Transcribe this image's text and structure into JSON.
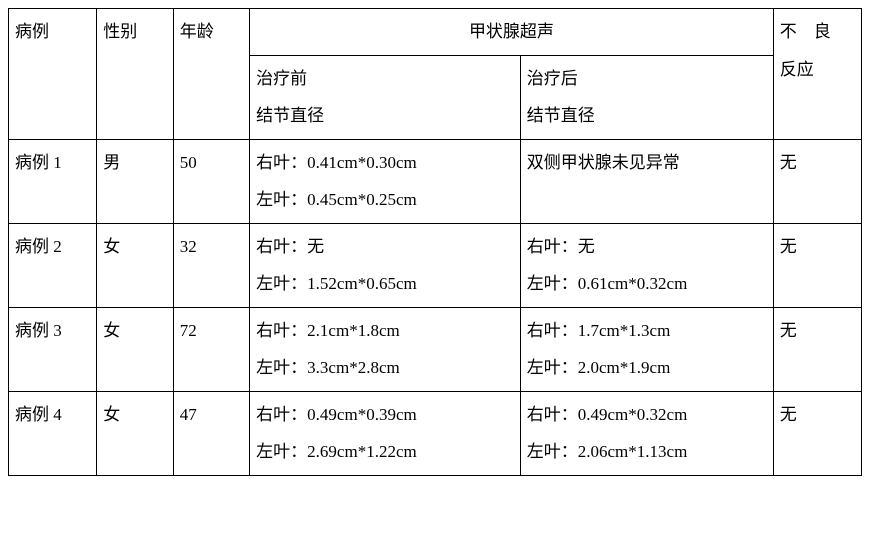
{
  "table": {
    "headers": {
      "case": "病例",
      "sex": "性别",
      "age": "年龄",
      "ultrasound": "甲状腺超声",
      "before_l1": "治疗前",
      "before_l2": "结节直径",
      "after_l1": "治疗后",
      "after_l2": "结节直径",
      "adverse_l1": "不　良",
      "adverse_l2": "反应"
    },
    "rows": [
      {
        "case": "病例 1",
        "sex": "男",
        "age": "50",
        "before_r": "右叶：0.41cm*0.30cm",
        "before_l": "左叶：0.45cm*0.25cm",
        "after_r": "双侧甲状腺未见异常",
        "after_l": "",
        "adverse": "无"
      },
      {
        "case": "病例 2",
        "sex": "女",
        "age": "32",
        "before_r": "右叶：无",
        "before_l": "左叶：1.52cm*0.65cm",
        "after_r": "右叶：无",
        "after_l": "左叶：0.61cm*0.32cm",
        "adverse": "无"
      },
      {
        "case": "病例 3",
        "sex": "女",
        "age": "72",
        "before_r": "右叶：2.1cm*1.8cm",
        "before_l": "左叶：3.3cm*2.8cm",
        "after_r": "右叶：1.7cm*1.3cm",
        "after_l": "左叶：2.0cm*1.9cm",
        "adverse": "无"
      },
      {
        "case": "病例 4",
        "sex": "女",
        "age": "47",
        "before_r": "右叶：0.49cm*0.39cm",
        "before_l": "左叶：2.69cm*1.22cm",
        "after_r": "右叶：0.49cm*0.32cm",
        "after_l": "左叶：2.06cm*1.13cm",
        "adverse": "无"
      }
    ]
  }
}
